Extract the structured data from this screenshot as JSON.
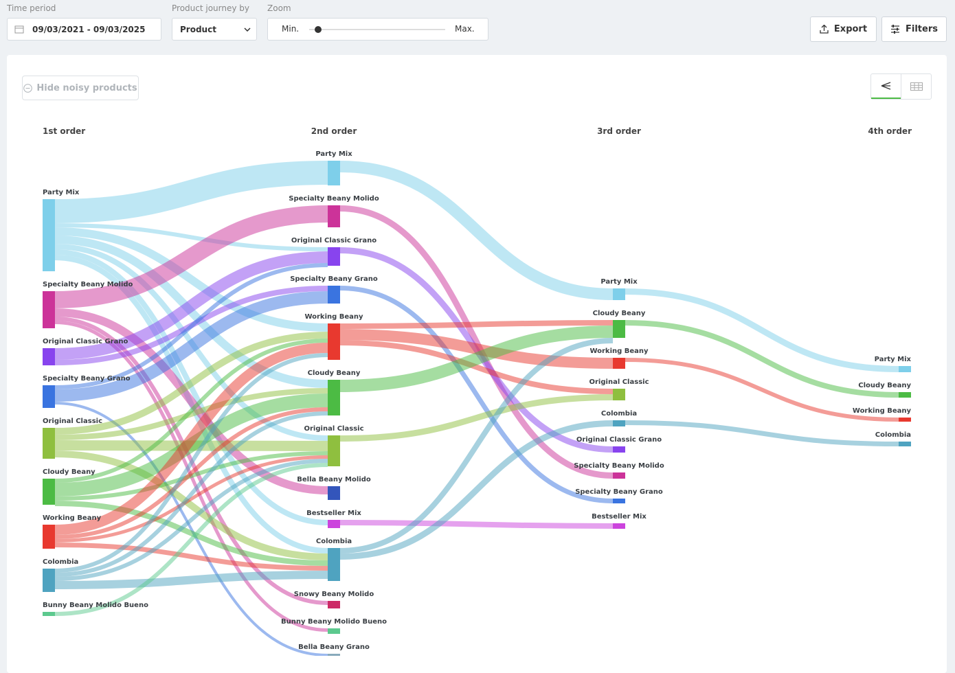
{
  "controls": {
    "time_period": {
      "label": "Time period",
      "value": "09/03/2021 - 09/03/2025"
    },
    "journey": {
      "label": "Product journey by",
      "value": "Product"
    },
    "zoom": {
      "label": "Zoom",
      "min": "Min.",
      "max": "Max."
    },
    "export": "Export",
    "filters": "Filters",
    "hide_noisy": "Hide noisy products"
  },
  "sankey": {
    "columns": [
      "1st order",
      "2nd order",
      "3rd order",
      "4th order"
    ],
    "nodes": [
      {
        "column": 0,
        "label": "Party Mix",
        "color": "#7ecfea",
        "value": 105
      },
      {
        "column": 0,
        "label": "Specialty Beany Molido",
        "color": "#cc3399",
        "value": 54
      },
      {
        "column": 0,
        "label": "Original Classic Grano",
        "color": "#8844ee",
        "value": 25
      },
      {
        "column": 0,
        "label": "Specialty Beany Grano",
        "color": "#3a74e0",
        "value": 33
      },
      {
        "column": 0,
        "label": "Original Classic",
        "color": "#8fbf3f",
        "value": 45
      },
      {
        "column": 0,
        "label": "Cloudy Beany",
        "color": "#4cbb44",
        "value": 38
      },
      {
        "column": 0,
        "label": "Working Beany",
        "color": "#e8392f",
        "value": 35
      },
      {
        "column": 0,
        "label": "Colombia",
        "color": "#4fa3c0",
        "value": 34
      },
      {
        "column": 0,
        "label": "Bunny Beany Molido Bueno",
        "color": "#5cc98e",
        "value": 6
      },
      {
        "column": 1,
        "label": "Party Mix",
        "color": "#7ecfea",
        "value": 36
      },
      {
        "column": 1,
        "label": "Specialty Beany Molido",
        "color": "#cc3399",
        "value": 32
      },
      {
        "column": 1,
        "label": "Original Classic Grano",
        "color": "#8844ee",
        "value": 27
      },
      {
        "column": 1,
        "label": "Specialty Beany Grano",
        "color": "#3a74e0",
        "value": 26
      },
      {
        "column": 1,
        "label": "Working Beany",
        "color": "#e8392f",
        "value": 53
      },
      {
        "column": 1,
        "label": "Cloudy Beany",
        "color": "#4cbb44",
        "value": 52
      },
      {
        "column": 1,
        "label": "Original Classic",
        "color": "#8fbf3f",
        "value": 45
      },
      {
        "column": 1,
        "label": "Bella Beany Molido",
        "color": "#3355bb",
        "value": 20
      },
      {
        "column": 1,
        "label": "Bestseller Mix",
        "color": "#cc44dd",
        "value": 12
      },
      {
        "column": 1,
        "label": "Colombia",
        "color": "#4fa3c0",
        "value": 48
      },
      {
        "column": 1,
        "label": "Snowy Beany Molido",
        "color": "#cc2a66",
        "value": 11
      },
      {
        "column": 1,
        "label": "Bunny Beany Molido Bueno",
        "color": "#5cc98e",
        "value": 8
      },
      {
        "column": 1,
        "label": "Bella Beany Grano",
        "color": "#88aabb",
        "value": 7
      },
      {
        "column": 2,
        "label": "Party Mix",
        "color": "#7ecfea",
        "value": 17
      },
      {
        "column": 2,
        "label": "Cloudy Beany",
        "color": "#4cbb44",
        "value": 26
      },
      {
        "column": 2,
        "label": "Working Beany",
        "color": "#e8392f",
        "value": 16
      },
      {
        "column": 2,
        "label": "Original Classic",
        "color": "#8fbf3f",
        "value": 17
      },
      {
        "column": 2,
        "label": "Colombia",
        "color": "#4fa3c0",
        "value": 9
      },
      {
        "column": 2,
        "label": "Original Classic Grano",
        "color": "#8844ee",
        "value": 9
      },
      {
        "column": 2,
        "label": "Specialty Beany Molido",
        "color": "#cc3399",
        "value": 9
      },
      {
        "column": 2,
        "label": "Specialty Beany Grano",
        "color": "#3a74e0",
        "value": 7
      },
      {
        "column": 2,
        "label": "Bestseller Mix",
        "color": "#cc44dd",
        "value": 8
      },
      {
        "column": 3,
        "label": "Party Mix",
        "color": "#7ecfea",
        "value": 9
      },
      {
        "column": 3,
        "label": "Cloudy Beany",
        "color": "#4cbb44",
        "value": 8
      },
      {
        "column": 3,
        "label": "Working Beany",
        "color": "#e8392f",
        "value": 6
      },
      {
        "column": 3,
        "label": "Colombia",
        "color": "#4fa3c0",
        "value": 7
      }
    ],
    "links": [
      {
        "source": 0,
        "target": 9,
        "value": 35
      },
      {
        "source": 0,
        "target": 11,
        "value": 6
      },
      {
        "source": 0,
        "target": 13,
        "value": 12
      },
      {
        "source": 0,
        "target": 14,
        "value": 12
      },
      {
        "source": 0,
        "target": 15,
        "value": 8
      },
      {
        "source": 0,
        "target": 17,
        "value": 8
      },
      {
        "source": 0,
        "target": 18,
        "value": 8
      },
      {
        "source": 1,
        "target": 10,
        "value": 25
      },
      {
        "source": 1,
        "target": 16,
        "value": 12
      },
      {
        "source": 1,
        "target": 19,
        "value": 6
      },
      {
        "source": 1,
        "target": 20,
        "value": 5
      },
      {
        "source": 2,
        "target": 11,
        "value": 17
      },
      {
        "source": 2,
        "target": 12,
        "value": 8
      },
      {
        "source": 3,
        "target": 12,
        "value": 18
      },
      {
        "source": 3,
        "target": 11,
        "value": 6
      },
      {
        "source": 3,
        "target": 21,
        "value": 4
      },
      {
        "source": 4,
        "target": 13,
        "value": 10
      },
      {
        "source": 4,
        "target": 15,
        "value": 15
      },
      {
        "source": 4,
        "target": 14,
        "value": 8
      },
      {
        "source": 4,
        "target": 18,
        "value": 10
      },
      {
        "source": 5,
        "target": 14,
        "value": 20
      },
      {
        "source": 5,
        "target": 13,
        "value": 6
      },
      {
        "source": 5,
        "target": 15,
        "value": 6
      },
      {
        "source": 5,
        "target": 18,
        "value": 8
      },
      {
        "source": 6,
        "target": 13,
        "value": 15
      },
      {
        "source": 6,
        "target": 14,
        "value": 6
      },
      {
        "source": 6,
        "target": 15,
        "value": 5
      },
      {
        "source": 6,
        "target": 18,
        "value": 7
      },
      {
        "source": 7,
        "target": 18,
        "value": 12
      },
      {
        "source": 7,
        "target": 13,
        "value": 6
      },
      {
        "source": 7,
        "target": 14,
        "value": 6
      },
      {
        "source": 7,
        "target": 15,
        "value": 6
      },
      {
        "source": 8,
        "target": 15,
        "value": 6
      },
      {
        "source": 9,
        "target": 22,
        "value": 17
      },
      {
        "source": 10,
        "target": 28,
        "value": 9
      },
      {
        "source": 11,
        "target": 27,
        "value": 9
      },
      {
        "source": 12,
        "target": 29,
        "value": 7
      },
      {
        "source": 13,
        "target": 23,
        "value": 8
      },
      {
        "source": 13,
        "target": 24,
        "value": 16
      },
      {
        "source": 13,
        "target": 25,
        "value": 8
      },
      {
        "source": 14,
        "target": 23,
        "value": 18
      },
      {
        "source": 15,
        "target": 25,
        "value": 9
      },
      {
        "source": 17,
        "target": 30,
        "value": 8
      },
      {
        "source": 18,
        "target": 26,
        "value": 9
      },
      {
        "source": 18,
        "target": 23,
        "value": 8
      },
      {
        "source": 22,
        "target": 31,
        "value": 9
      },
      {
        "source": 23,
        "target": 32,
        "value": 8
      },
      {
        "source": 24,
        "target": 33,
        "value": 6
      },
      {
        "source": 26,
        "target": 34,
        "value": 7
      }
    ]
  }
}
